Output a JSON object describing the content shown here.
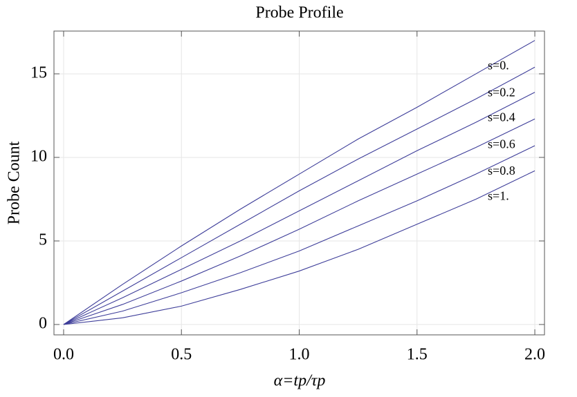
{
  "chart_data": {
    "type": "line",
    "title": "Probe Profile",
    "x_label": "α=tp/τp",
    "y_label": "Probe Count",
    "x": [
      0,
      0.25,
      0.5,
      0.75,
      1.0,
      1.25,
      1.5,
      1.75,
      2.0
    ],
    "series": [
      {
        "name": "s=0.",
        "color": "#3d3d99",
        "values": [
          0,
          2.4,
          4.7,
          6.9,
          9.0,
          11.1,
          13.0,
          15.0,
          17.0
        ]
      },
      {
        "name": "s=0.2",
        "color": "#3d3d99",
        "values": [
          0,
          2.0,
          4.0,
          6.0,
          8.0,
          9.9,
          11.7,
          13.5,
          15.4
        ]
      },
      {
        "name": "s=0.4",
        "color": "#3d3d99",
        "values": [
          0,
          1.6,
          3.3,
          5.0,
          6.8,
          8.6,
          10.4,
          12.1,
          13.9
        ]
      },
      {
        "name": "s=0.6",
        "color": "#3d3d99",
        "values": [
          0,
          1.2,
          2.6,
          4.1,
          5.7,
          7.4,
          9.0,
          10.6,
          12.3
        ]
      },
      {
        "name": "s=0.8",
        "color": "#3d3d99",
        "values": [
          0,
          0.8,
          1.9,
          3.1,
          4.4,
          5.9,
          7.4,
          9.0,
          10.7
        ]
      },
      {
        "name": "s=1.",
        "color": "#3d3d99",
        "values": [
          0,
          0.4,
          1.1,
          2.1,
          3.2,
          4.5,
          6.0,
          7.5,
          9.2
        ]
      }
    ],
    "xlim": [
      -0.041,
      2.041
    ],
    "ylim": [
      -0.62,
      17.56
    ],
    "xticks": [
      {
        "value": 0,
        "label": "0.0"
      },
      0.5,
      {
        "value": 1,
        "label": "1.0"
      },
      1.5,
      {
        "value": 2,
        "label": "2.0"
      }
    ],
    "yticks": [
      0,
      5,
      10,
      15
    ],
    "grid": true
  }
}
